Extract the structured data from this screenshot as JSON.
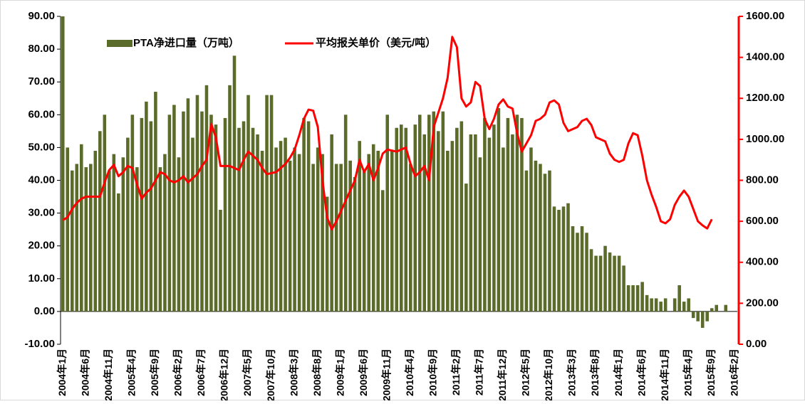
{
  "chart_data": {
    "type": "combo",
    "categories": [
      "2004年1月",
      null,
      null,
      null,
      null,
      "2004年6月",
      null,
      null,
      null,
      null,
      "2004年11月",
      null,
      null,
      null,
      null,
      "2005年4月",
      null,
      null,
      null,
      null,
      "2005年9月",
      null,
      null,
      null,
      null,
      "2006年2月",
      null,
      null,
      null,
      null,
      "2006年7月",
      null,
      null,
      null,
      null,
      "2006年12月",
      null,
      null,
      null,
      null,
      "2007年5月",
      null,
      null,
      null,
      null,
      "2007年10月",
      null,
      null,
      null,
      null,
      "2008年3月",
      null,
      null,
      null,
      null,
      "2008年8月",
      null,
      null,
      null,
      null,
      "2009年1月",
      null,
      null,
      null,
      null,
      "2009年6月",
      null,
      null,
      null,
      null,
      "2009年11月",
      null,
      null,
      null,
      null,
      "2010年4月",
      null,
      null,
      null,
      null,
      "2010年9月",
      null,
      null,
      null,
      null,
      "2011年2月",
      null,
      null,
      null,
      null,
      "2011年7月",
      null,
      null,
      null,
      null,
      "2011年12月",
      null,
      null,
      null,
      null,
      "2012年5月",
      null,
      null,
      null,
      null,
      "2012年10月",
      null,
      null,
      null,
      null,
      "2013年3月",
      null,
      null,
      null,
      null,
      "2013年8月",
      null,
      null,
      null,
      null,
      "2014年1月",
      null,
      null,
      null,
      null,
      "2014年6月",
      null,
      null,
      null,
      null,
      "2014年11月",
      null,
      null,
      null,
      null,
      "2015年4月",
      null,
      null,
      null,
      null,
      "2015年9月",
      null,
      null,
      null,
      null,
      "2016年2月"
    ],
    "series": [
      {
        "name": "PTA净进口量（万吨）",
        "type": "bar",
        "color": "#5a6b2a",
        "values": [
          90,
          50,
          43,
          45,
          51,
          44,
          45,
          49,
          55,
          60,
          43,
          48,
          36,
          47,
          53,
          60,
          44,
          59,
          64,
          58,
          67,
          44,
          48,
          60,
          63,
          47,
          61,
          65,
          53,
          66,
          61,
          69,
          60,
          57,
          31,
          59,
          69,
          78,
          56,
          58,
          66,
          56,
          54,
          49,
          66,
          66,
          50,
          52,
          53,
          46,
          50,
          48,
          59,
          58,
          45,
          50,
          48,
          35,
          54,
          45,
          45,
          60,
          46,
          41,
          52,
          43,
          48,
          51,
          49,
          37,
          60,
          49,
          56,
          57,
          56,
          45,
          57,
          60,
          54,
          60,
          61,
          55,
          61,
          49,
          52,
          56,
          58,
          39,
          54,
          54,
          47,
          59,
          53,
          57,
          62,
          50,
          59,
          54,
          60,
          59,
          43,
          50,
          46,
          45,
          42,
          43,
          32,
          31,
          32,
          33,
          26,
          24,
          26,
          24,
          19,
          17,
          17,
          20,
          18,
          17,
          17,
          14,
          8,
          8,
          8,
          9,
          5,
          4,
          4,
          3,
          4,
          0,
          4,
          8,
          3,
          4,
          -2,
          -3,
          -5,
          -3,
          1,
          2,
          0,
          2,
          null,
          null
        ]
      },
      {
        "name": "平均报关单价（美元/吨）",
        "type": "line",
        "axis": "y2",
        "color": "#ff0000",
        "values": [
          605,
          620,
          660,
          690,
          710,
          720,
          720,
          720,
          720,
          790,
          850,
          875,
          820,
          840,
          870,
          860,
          780,
          710,
          740,
          760,
          800,
          840,
          830,
          800,
          790,
          800,
          820,
          790,
          810,
          830,
          870,
          900,
          1075,
          1010,
          870,
          870,
          870,
          860,
          850,
          900,
          940,
          920,
          900,
          860,
          830,
          835,
          840,
          860,
          880,
          910,
          950,
          1020,
          1100,
          1145,
          1140,
          1060,
          800,
          620,
          560,
          600,
          650,
          700,
          750,
          800,
          900,
          840,
          880,
          800,
          860,
          930,
          950,
          945,
          940,
          950,
          960,
          880,
          820,
          840,
          870,
          800,
          1060,
          1130,
          1200,
          1300,
          1500,
          1450,
          1200,
          1160,
          1180,
          1280,
          1260,
          1100,
          1050,
          1100,
          1170,
          1195,
          1160,
          1150,
          1030,
          940,
          980,
          1020,
          1090,
          1100,
          1120,
          1180,
          1190,
          1170,
          1080,
          1040,
          1050,
          1060,
          1090,
          1100,
          1070,
          1010,
          1000,
          990,
          930,
          900,
          890,
          900,
          980,
          1030,
          1020,
          920,
          800,
          730,
          670,
          600,
          590,
          610,
          680,
          720,
          750,
          720,
          660,
          600,
          580,
          565,
          610,
          null,
          null,
          null,
          null,
          null
        ]
      }
    ],
    "ylim": [
      -10,
      90
    ],
    "yticks": [
      {
        "value": -10,
        "label": "-10.00"
      },
      {
        "value": 0,
        "label": "0.00"
      },
      {
        "value": 10,
        "label": "10.00"
      },
      {
        "value": 20,
        "label": "20.00"
      },
      {
        "value": 30,
        "label": "30.00"
      },
      {
        "value": 40,
        "label": "40.00"
      },
      {
        "value": 50,
        "label": "50.00"
      },
      {
        "value": 60,
        "label": "60.00"
      },
      {
        "value": 70,
        "label": "70.00"
      },
      {
        "value": 80,
        "label": "80.00"
      },
      {
        "value": 90,
        "label": "90.00"
      }
    ],
    "y2lim": [
      0,
      1600
    ],
    "y2ticks": [
      {
        "value": 0,
        "label": "0.00"
      },
      {
        "value": 200,
        "label": "200.00"
      },
      {
        "value": 400,
        "label": "400.00"
      },
      {
        "value": 600,
        "label": "600.00"
      },
      {
        "value": 800,
        "label": "800.00"
      },
      {
        "value": 1000,
        "label": "1000.00"
      },
      {
        "value": 1200,
        "label": "1200.00"
      },
      {
        "value": 1400,
        "label": "1400.00"
      },
      {
        "value": 1600,
        "label": "1600.00"
      }
    ],
    "grid": false
  }
}
